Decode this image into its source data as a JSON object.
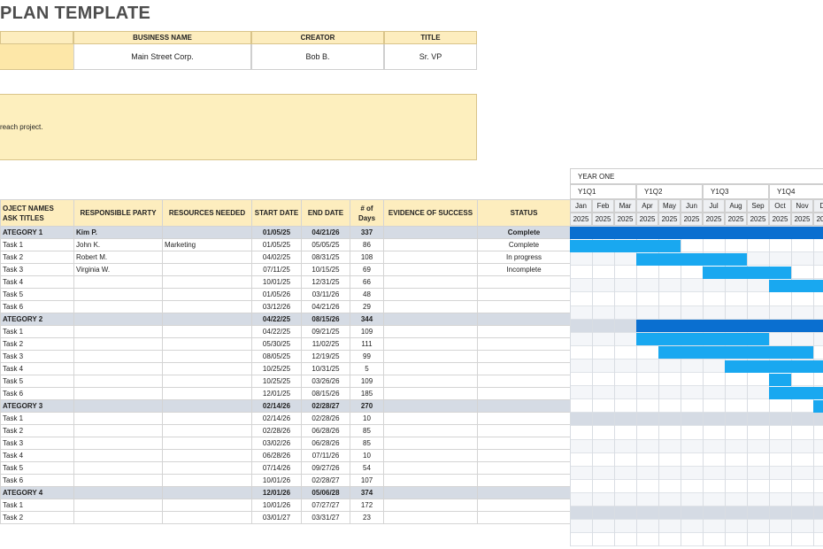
{
  "title": "PLAN TEMPLATE",
  "info": {
    "business_name_label": "BUSINESS NAME",
    "creator_label": "CREATOR",
    "title_label": "TITLE",
    "business_name": "Main Street Corp.",
    "creator": "Bob B.",
    "title_value": "Sr. VP"
  },
  "description": "reach project.",
  "headers": {
    "project_names": "OJECT NAMES",
    "task_titles": "ASK TITLES",
    "responsible": "RESPONSIBLE PARTY",
    "resources": "RESOURCES NEEDED",
    "start": "START DATE",
    "end": "END DATE",
    "days": "# of Days",
    "evidence": "EVIDENCE OF SUCCESS",
    "status": "STATUS"
  },
  "gantt": {
    "year": "YEAR ONE",
    "quarters": [
      "Y1Q1",
      "Y1Q2",
      "Y1Q3",
      "Y1Q4"
    ],
    "months": [
      "Jan",
      "Feb",
      "Mar",
      "Apr",
      "May",
      "Jun",
      "Jul",
      "Aug",
      "Sep",
      "Oct",
      "Nov",
      "De"
    ],
    "year_label": "2025",
    "category_color": "#0a6fd0",
    "task_color": "#19a8f0"
  },
  "rows": [
    {
      "type": "cat",
      "name": "ATEGORY 1",
      "party": "Kim P.",
      "resource": "",
      "start": "01/05/25",
      "end": "04/21/26",
      "days": "337",
      "evidence": "",
      "status": "Complete",
      "bar_start": 0,
      "bar_end": 12
    },
    {
      "type": "task",
      "name": "Task 1",
      "party": "John K.",
      "resource": "Marketing",
      "start": "01/05/25",
      "end": "05/05/25",
      "days": "86",
      "evidence": "",
      "status": "Complete",
      "bar_start": 0,
      "bar_end": 5
    },
    {
      "type": "task",
      "name": "Task 2",
      "party": "Robert M.",
      "resource": "",
      "start": "04/02/25",
      "end": "08/31/25",
      "days": "108",
      "evidence": "",
      "status": "In progress",
      "bar_start": 3,
      "bar_end": 8
    },
    {
      "type": "task",
      "name": "Task 3",
      "party": "Virginia W.",
      "resource": "",
      "start": "07/11/25",
      "end": "10/15/25",
      "days": "69",
      "evidence": "",
      "status": "Incomplete",
      "bar_start": 6,
      "bar_end": 10
    },
    {
      "type": "task",
      "name": "Task 4",
      "party": "",
      "resource": "",
      "start": "10/01/25",
      "end": "12/31/25",
      "days": "66",
      "evidence": "",
      "status": "",
      "bar_start": 9,
      "bar_end": 12
    },
    {
      "type": "task",
      "name": "Task 5",
      "party": "",
      "resource": "",
      "start": "01/05/26",
      "end": "03/11/26",
      "days": "48",
      "evidence": "",
      "status": "",
      "bar_start": null,
      "bar_end": null
    },
    {
      "type": "task",
      "name": "Task 6",
      "party": "",
      "resource": "",
      "start": "03/12/26",
      "end": "04/21/26",
      "days": "29",
      "evidence": "",
      "status": "",
      "bar_start": null,
      "bar_end": null
    },
    {
      "type": "cat",
      "name": "ATEGORY 2",
      "party": "",
      "resource": "",
      "start": "04/22/25",
      "end": "08/15/26",
      "days": "344",
      "evidence": "",
      "status": "",
      "bar_start": 3,
      "bar_end": 12
    },
    {
      "type": "task",
      "name": "Task 1",
      "party": "",
      "resource": "",
      "start": "04/22/25",
      "end": "09/21/25",
      "days": "109",
      "evidence": "",
      "status": "",
      "bar_start": 3,
      "bar_end": 9
    },
    {
      "type": "task",
      "name": "Task 2",
      "party": "",
      "resource": "",
      "start": "05/30/25",
      "end": "11/02/25",
      "days": "111",
      "evidence": "",
      "status": "",
      "bar_start": 4,
      "bar_end": 11
    },
    {
      "type": "task",
      "name": "Task 3",
      "party": "",
      "resource": "",
      "start": "08/05/25",
      "end": "12/19/25",
      "days": "99",
      "evidence": "",
      "status": "",
      "bar_start": 7,
      "bar_end": 12
    },
    {
      "type": "task",
      "name": "Task 4",
      "party": "",
      "resource": "",
      "start": "10/25/25",
      "end": "10/31/25",
      "days": "5",
      "evidence": "",
      "status": "",
      "bar_start": 9,
      "bar_end": 10
    },
    {
      "type": "task",
      "name": "Task 5",
      "party": "",
      "resource": "",
      "start": "10/25/25",
      "end": "03/26/26",
      "days": "109",
      "evidence": "",
      "status": "",
      "bar_start": 9,
      "bar_end": 12
    },
    {
      "type": "task",
      "name": "Task 6",
      "party": "",
      "resource": "",
      "start": "12/01/25",
      "end": "08/15/26",
      "days": "185",
      "evidence": "",
      "status": "",
      "bar_start": 11,
      "bar_end": 12
    },
    {
      "type": "cat",
      "name": "ATEGORY 3",
      "party": "",
      "resource": "",
      "start": "02/14/26",
      "end": "02/28/27",
      "days": "270",
      "evidence": "",
      "status": "",
      "bar_start": null,
      "bar_end": null
    },
    {
      "type": "task",
      "name": "Task 1",
      "party": "",
      "resource": "",
      "start": "02/14/26",
      "end": "02/28/26",
      "days": "10",
      "evidence": "",
      "status": "",
      "bar_start": null,
      "bar_end": null
    },
    {
      "type": "task",
      "name": "Task 2",
      "party": "",
      "resource": "",
      "start": "02/28/26",
      "end": "06/28/26",
      "days": "85",
      "evidence": "",
      "status": "",
      "bar_start": null,
      "bar_end": null
    },
    {
      "type": "task",
      "name": "Task 3",
      "party": "",
      "resource": "",
      "start": "03/02/26",
      "end": "06/28/26",
      "days": "85",
      "evidence": "",
      "status": "",
      "bar_start": null,
      "bar_end": null
    },
    {
      "type": "task",
      "name": "Task 4",
      "party": "",
      "resource": "",
      "start": "06/28/26",
      "end": "07/11/26",
      "days": "10",
      "evidence": "",
      "status": "",
      "bar_start": null,
      "bar_end": null
    },
    {
      "type": "task",
      "name": "Task 5",
      "party": "",
      "resource": "",
      "start": "07/14/26",
      "end": "09/27/26",
      "days": "54",
      "evidence": "",
      "status": "",
      "bar_start": null,
      "bar_end": null
    },
    {
      "type": "task",
      "name": "Task 6",
      "party": "",
      "resource": "",
      "start": "10/01/26",
      "end": "02/28/27",
      "days": "107",
      "evidence": "",
      "status": "",
      "bar_start": null,
      "bar_end": null
    },
    {
      "type": "cat",
      "name": "ATEGORY 4",
      "party": "",
      "resource": "",
      "start": "12/01/26",
      "end": "05/06/28",
      "days": "374",
      "evidence": "",
      "status": "",
      "bar_start": null,
      "bar_end": null
    },
    {
      "type": "task",
      "name": "Task 1",
      "party": "",
      "resource": "",
      "start": "10/01/26",
      "end": "07/27/27",
      "days": "172",
      "evidence": "",
      "status": "",
      "bar_start": null,
      "bar_end": null
    },
    {
      "type": "task",
      "name": "Task 2",
      "party": "",
      "resource": "",
      "start": "03/01/27",
      "end": "03/31/27",
      "days": "23",
      "evidence": "",
      "status": "",
      "bar_start": null,
      "bar_end": null
    }
  ]
}
